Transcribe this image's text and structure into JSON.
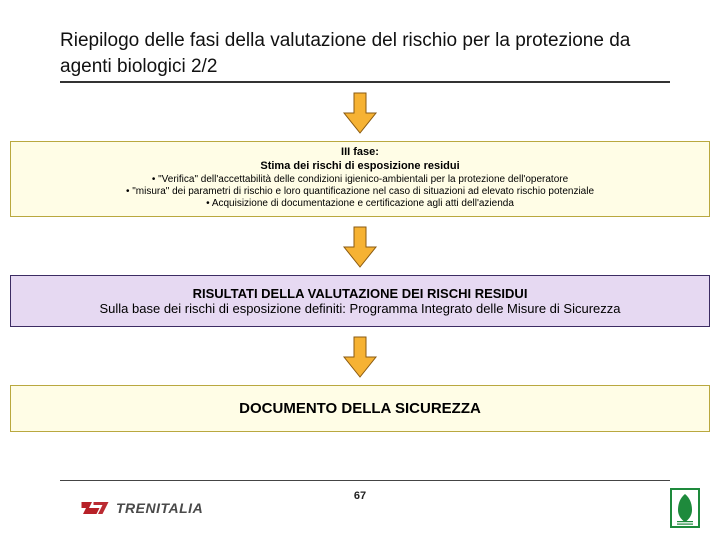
{
  "title": "Riepilogo delle fasi della valutazione del rischio per la protezione da agenti biologici  2/2",
  "arrow": {
    "fill": "#f6b233",
    "stroke": "#8a5a10",
    "width": 36,
    "height": 44
  },
  "phase3": {
    "bg": "#fffde6",
    "border": "#b9a83f",
    "title": "III fase:",
    "subtitle": "Stima dei rischi di esposizione residui",
    "bullets": [
      "\"Verifica\" dell'accettabilità delle condizioni igienico-ambientali per la protezione dell'operatore",
      "\"misura\" dei parametri di rischio e loro quantificazione nel caso di situazioni ad elevato rischio potenziale",
      "Acquisizione di documentazione e certificazione agli atti dell'azienda"
    ]
  },
  "results": {
    "bg": "#e6d9f2",
    "border": "#3c2c63",
    "headline": "RISULTATI DELLA VALUTAZIONE DEI RISCHI RESIDUI",
    "subline": "Sulla base dei rischi di esposizione definiti: Programma Integrato delle Misure di Sicurezza"
  },
  "document": {
    "bg": "#fffde6",
    "border": "#b9a83f",
    "text": "DOCUMENTO DELLA SICUREZZA"
  },
  "footer": {
    "brand": "TRENITALIA",
    "page": "67",
    "badge_green": "#1e8a3c",
    "brand_red": "#b72027"
  }
}
